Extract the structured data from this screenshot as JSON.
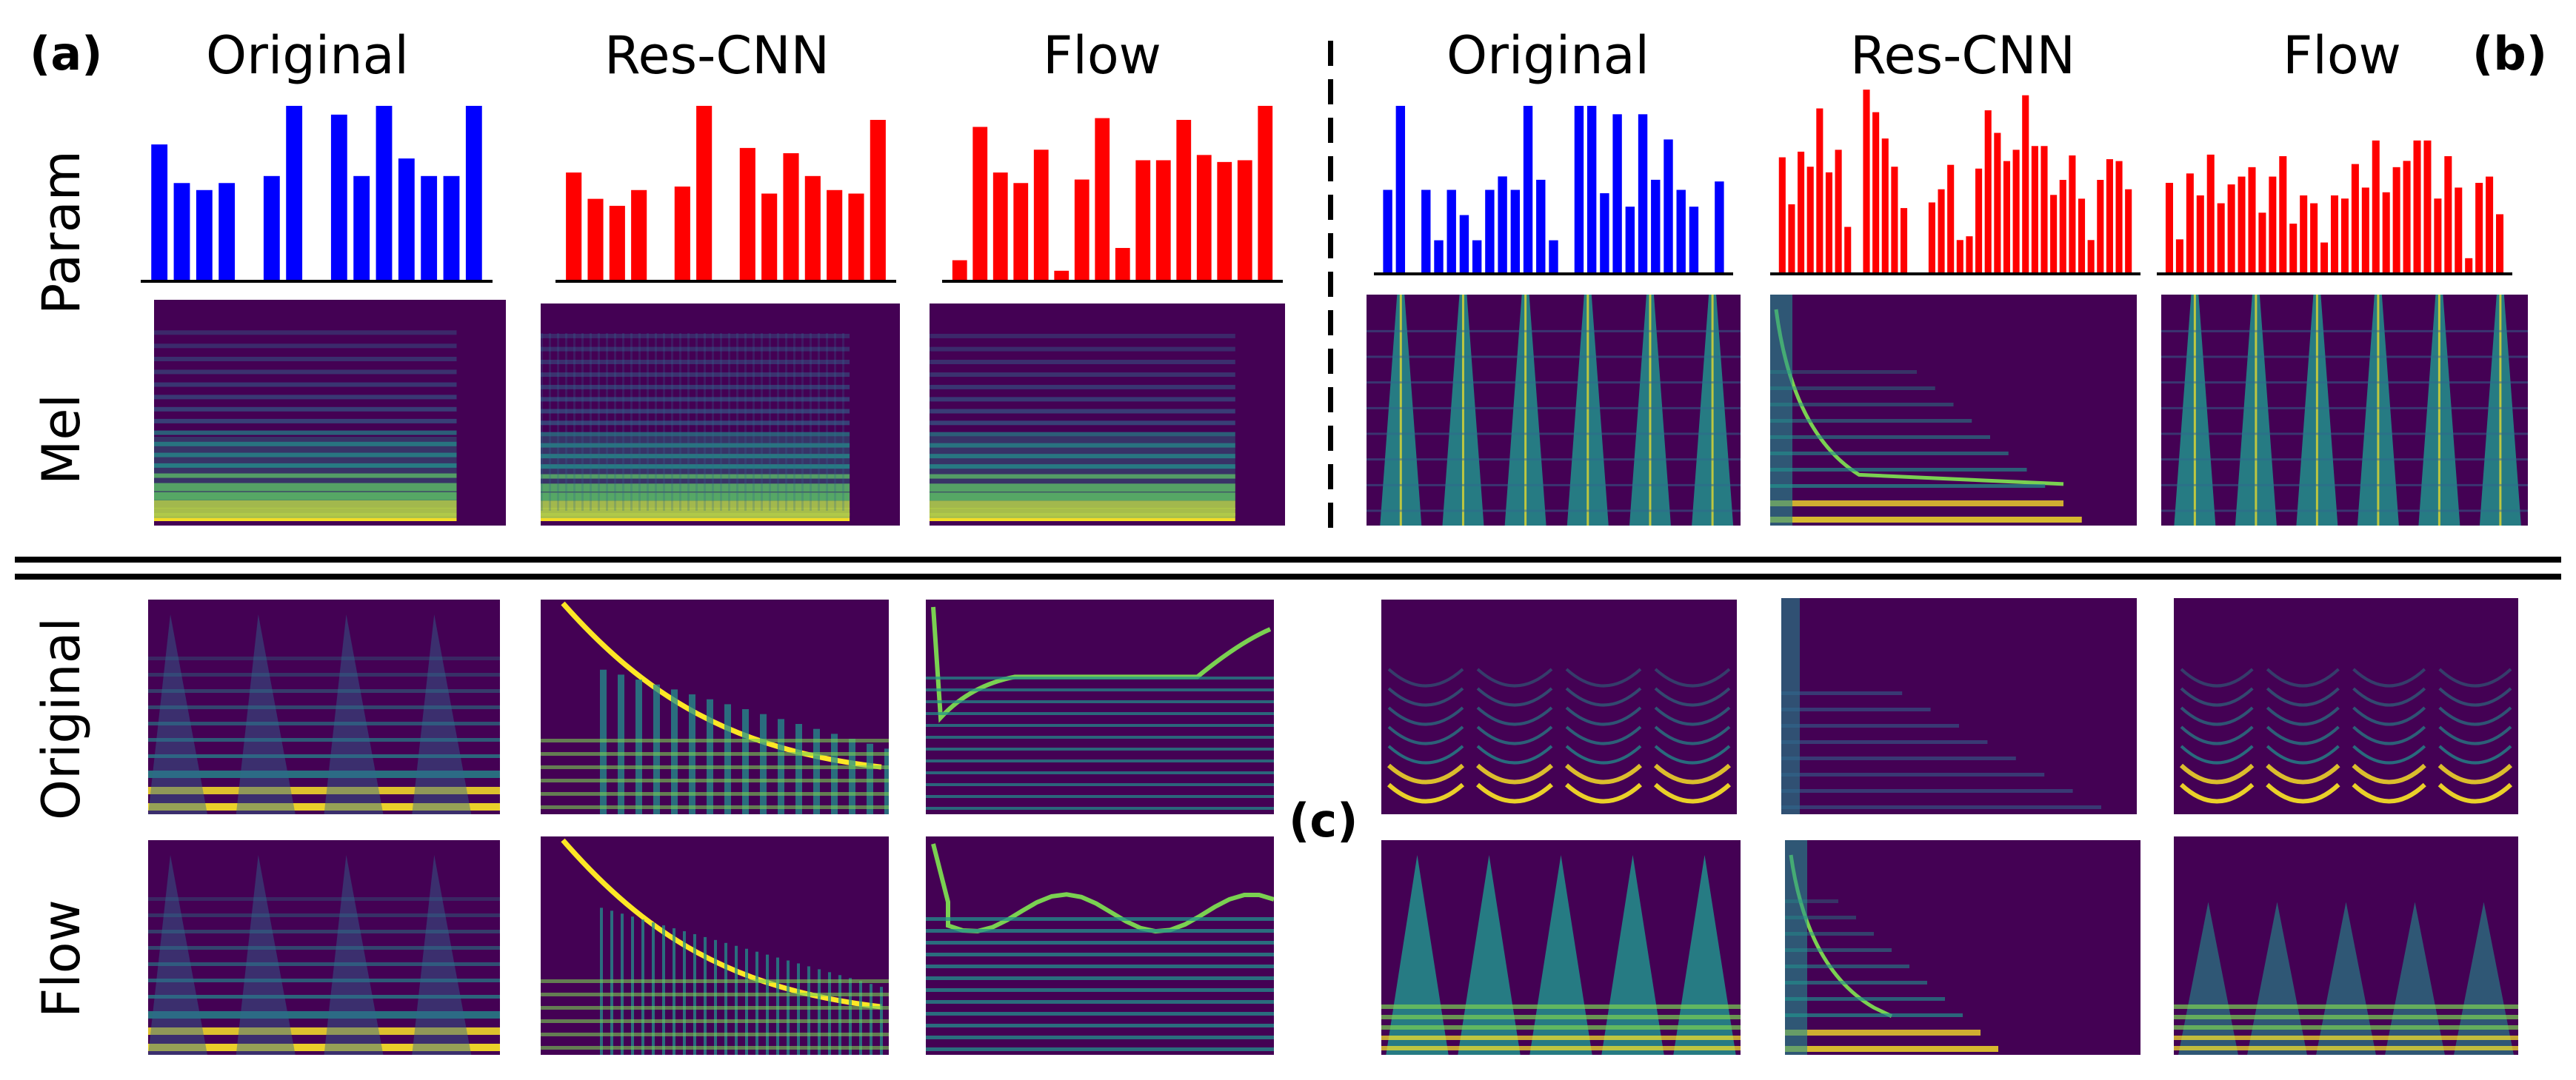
{
  "panel_labels": {
    "a": "(a)",
    "b": "(b)",
    "c": "(c)"
  },
  "top_column_titles_a": [
    "Original",
    "Res-CNN",
    "Flow"
  ],
  "top_column_titles_b": [
    "Original",
    "Res-CNN",
    "Flow"
  ],
  "top_row_labels": {
    "param": "Param",
    "mel": "Mel"
  },
  "bottom_row_labels": {
    "original": "Original",
    "flow": "Flow"
  },
  "colors": {
    "original_bars": "#0000ff",
    "predicted_bars": "#ff0000",
    "spectrogram_background": "#440154",
    "spectrogram_mid": "#21918c",
    "spectrogram_high": "#fde725"
  },
  "chart_data": [
    {
      "type": "bar",
      "panel": "a",
      "column": "Original",
      "values": [
        0.78,
        0.56,
        0.52,
        0.56,
        0,
        0.6,
        1.0,
        0,
        0.95,
        0.6,
        1.0,
        0.7,
        0.6,
        0.6,
        1.0
      ]
    },
    {
      "type": "bar",
      "panel": "a",
      "column": "Res-CNN",
      "values": [
        0.62,
        0.47,
        0.43,
        0.52,
        0,
        0.54,
        1.0,
        0,
        0.76,
        0.5,
        0.73,
        0.6,
        0.52,
        0.5,
        0.92
      ]
    },
    {
      "type": "bar",
      "panel": "a",
      "column": "Flow",
      "values": [
        0.12,
        0.88,
        0.62,
        0.56,
        0.75,
        0.06,
        0.58,
        0.93,
        0.19,
        0.69,
        0.69,
        0.92,
        0.72,
        0.68,
        0.69,
        1.0
      ]
    },
    {
      "type": "bar",
      "panel": "b",
      "column": "Original",
      "values": [
        0.5,
        1.0,
        0,
        0.5,
        0.2,
        0.5,
        0.35,
        0.2,
        0.5,
        0.58,
        0.5,
        1.0,
        0.56,
        0.2,
        0,
        1.0,
        1.0,
        0.48,
        0.95,
        0.4,
        0.95,
        0.56,
        0.8,
        0.5,
        0.4,
        0,
        0.55
      ]
    },
    {
      "type": "bar",
      "panel": "b",
      "column": "Res-CNN",
      "values": [
        0.62,
        0.37,
        0.65,
        0.57,
        0.88,
        0.54,
        0.66,
        0.25,
        0,
        0.98,
        0.86,
        0.72,
        0.57,
        0.35,
        0,
        0,
        0.38,
        0.45,
        0.58,
        0.18,
        0.2,
        0.56,
        0.87,
        0.75,
        0.6,
        0.66,
        0.95,
        0.68,
        0.68,
        0.42,
        0.5,
        0.63,
        0.4,
        0.18,
        0.5,
        0.61,
        0.6,
        0.45
      ]
    },
    {
      "type": "bar",
      "panel": "b",
      "column": "Flow",
      "values": [
        0.58,
        0.22,
        0.64,
        0.5,
        0.76,
        0.45,
        0.57,
        0.62,
        0.68,
        0.39,
        0.62,
        0.75,
        0.32,
        0.5,
        0.45,
        0.2,
        0.5,
        0.48,
        0.7,
        0.55,
        0.85,
        0.52,
        0.68,
        0.72,
        0.85,
        0.85,
        0.48,
        0.75,
        0.55,
        0.1,
        0.58,
        0.62,
        0.38
      ]
    }
  ]
}
